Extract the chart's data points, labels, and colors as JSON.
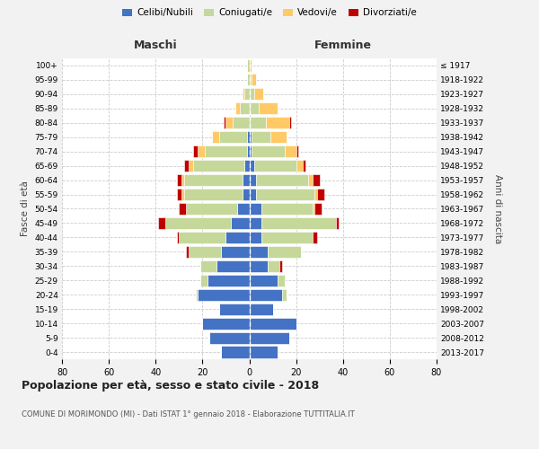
{
  "age_groups": [
    "0-4",
    "5-9",
    "10-14",
    "15-19",
    "20-24",
    "25-29",
    "30-34",
    "35-39",
    "40-44",
    "45-49",
    "50-54",
    "55-59",
    "60-64",
    "65-69",
    "70-74",
    "75-79",
    "80-84",
    "85-89",
    "90-94",
    "95-99",
    "100+"
  ],
  "birth_years": [
    "2013-2017",
    "2008-2012",
    "2003-2007",
    "1998-2002",
    "1993-1997",
    "1988-1992",
    "1983-1987",
    "1978-1982",
    "1973-1977",
    "1968-1972",
    "1963-1967",
    "1958-1962",
    "1953-1957",
    "1948-1952",
    "1943-1947",
    "1938-1942",
    "1933-1937",
    "1928-1932",
    "1923-1927",
    "1918-1922",
    "≤ 1917"
  ],
  "male": {
    "celibe": [
      12,
      17,
      20,
      13,
      22,
      18,
      14,
      12,
      10,
      8,
      5,
      3,
      3,
      2,
      1,
      1,
      0,
      0,
      0,
      0,
      0
    ],
    "coniugato": [
      0,
      0,
      0,
      0,
      1,
      3,
      7,
      14,
      20,
      28,
      22,
      25,
      25,
      22,
      18,
      12,
      7,
      4,
      2,
      1,
      1
    ],
    "vedovo": [
      0,
      0,
      0,
      0,
      0,
      0,
      0,
      0,
      0,
      0,
      0,
      1,
      1,
      2,
      3,
      3,
      3,
      2,
      1,
      0,
      0
    ],
    "divorziato": [
      0,
      0,
      0,
      0,
      0,
      0,
      0,
      1,
      1,
      3,
      3,
      2,
      2,
      2,
      2,
      0,
      1,
      0,
      0,
      0,
      0
    ]
  },
  "female": {
    "nubile": [
      12,
      17,
      20,
      10,
      14,
      12,
      8,
      8,
      5,
      5,
      5,
      3,
      3,
      2,
      1,
      1,
      0,
      0,
      0,
      0,
      0
    ],
    "coniugata": [
      0,
      0,
      0,
      0,
      2,
      3,
      5,
      14,
      22,
      32,
      22,
      25,
      22,
      18,
      14,
      8,
      7,
      4,
      2,
      1,
      0
    ],
    "vedova": [
      0,
      0,
      0,
      0,
      0,
      0,
      0,
      0,
      0,
      0,
      1,
      1,
      2,
      3,
      5,
      7,
      10,
      8,
      4,
      2,
      1
    ],
    "divorziata": [
      0,
      0,
      0,
      0,
      0,
      0,
      1,
      0,
      2,
      1,
      3,
      3,
      3,
      1,
      1,
      0,
      1,
      0,
      0,
      0,
      0
    ]
  },
  "colors": {
    "celibe_nubile": "#4472C4",
    "coniugato_a": "#C5D89A",
    "vedovo_a": "#FFCA66",
    "divorziato_a": "#C00000"
  },
  "title": "Popolazione per età, sesso e stato civile - 2018",
  "subtitle": "COMUNE DI MORIMONDO (MI) - Dati ISTAT 1° gennaio 2018 - Elaborazione TUTTITALIA.IT",
  "label_maschi": "Maschi",
  "label_femmine": "Femmine",
  "ylabel_left": "Fasce di età",
  "ylabel_right": "Anni di nascita",
  "xlim": 80,
  "background_color": "#f2f2f2",
  "plot_bg": "#ffffff",
  "legend_labels": [
    "Celibi/Nubili",
    "Coniugati/e",
    "Vedovi/e",
    "Divorziati/e"
  ]
}
